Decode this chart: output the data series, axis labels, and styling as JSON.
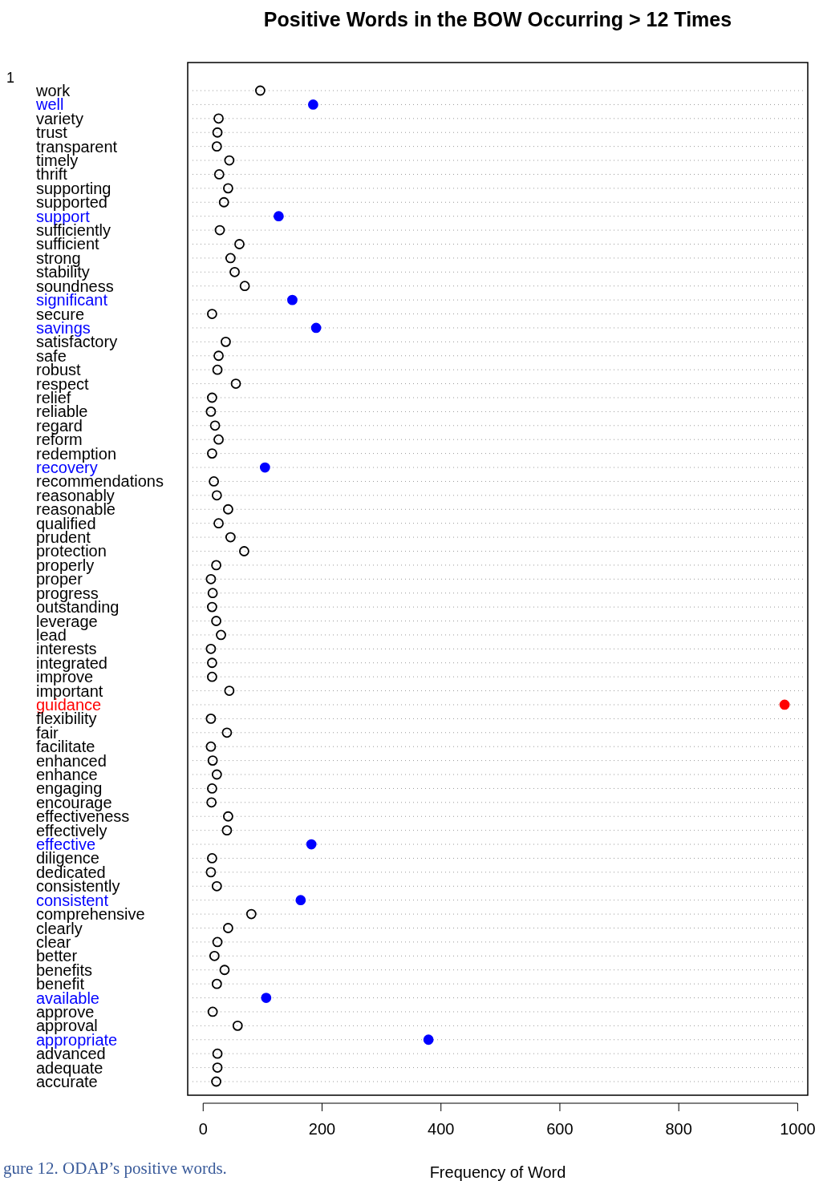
{
  "chart_data": {
    "type": "scatter",
    "title": "Positive Words in the BOW Occurring > 12 Times",
    "xlabel": "Frequency of Word",
    "orientation": "horizontal",
    "categories": [
      "work",
      "well",
      "variety",
      "trust",
      "transparent",
      "timely",
      "thrift",
      "supporting",
      "supported",
      "support",
      "sufficiently",
      "sufficient",
      "strong",
      "stability",
      "soundness",
      "significant",
      "secure",
      "savings",
      "satisfactory",
      "safe",
      "robust",
      "respect",
      "relief",
      "reliable",
      "regard",
      "reform",
      "redemption",
      "recovery",
      "recommendations",
      "reasonably",
      "reasonable",
      "qualified",
      "prudent",
      "protection",
      "properly",
      "proper",
      "progress",
      "outstanding",
      "leverage",
      "lead",
      "interests",
      "integrated",
      "improve",
      "important",
      "guidance",
      "flexibility",
      "fair",
      "facilitate",
      "enhanced",
      "enhance",
      "engaging",
      "encourage",
      "effectiveness",
      "effectively",
      "effective",
      "diligence",
      "dedicated",
      "consistently",
      "consistent",
      "comprehensive",
      "clearly",
      "clear",
      "better",
      "benefits",
      "benefit",
      "available",
      "approve",
      "approval",
      "appropriate",
      "advanced",
      "adequate",
      "accurate"
    ],
    "values": [
      96,
      185,
      26,
      24,
      23,
      44,
      27,
      42,
      35,
      127,
      28,
      61,
      46,
      53,
      70,
      150,
      15,
      190,
      38,
      26,
      24,
      55,
      15,
      13,
      20,
      26,
      15,
      104,
      18,
      23,
      42,
      26,
      46,
      69,
      22,
      13,
      16,
      15,
      22,
      30,
      13,
      15,
      15,
      44,
      978,
      13,
      40,
      13,
      16,
      23,
      15,
      14,
      42,
      40,
      182,
      15,
      13,
      23,
      164,
      81,
      42,
      24,
      19,
      36,
      23,
      106,
      16,
      58,
      379,
      24,
      24,
      22
    ],
    "colors": [
      "#000000",
      "#0000ff",
      "#000000",
      "#000000",
      "#000000",
      "#000000",
      "#000000",
      "#000000",
      "#000000",
      "#0000ff",
      "#000000",
      "#000000",
      "#000000",
      "#000000",
      "#000000",
      "#0000ff",
      "#000000",
      "#0000ff",
      "#000000",
      "#000000",
      "#000000",
      "#000000",
      "#000000",
      "#000000",
      "#000000",
      "#000000",
      "#000000",
      "#0000ff",
      "#000000",
      "#000000",
      "#000000",
      "#000000",
      "#000000",
      "#000000",
      "#000000",
      "#000000",
      "#000000",
      "#000000",
      "#000000",
      "#000000",
      "#000000",
      "#000000",
      "#000000",
      "#000000",
      "#ff0000",
      "#000000",
      "#000000",
      "#000000",
      "#000000",
      "#000000",
      "#000000",
      "#000000",
      "#000000",
      "#000000",
      "#0000ff",
      "#000000",
      "#000000",
      "#000000",
      "#0000ff",
      "#000000",
      "#000000",
      "#000000",
      "#000000",
      "#000000",
      "#000000",
      "#0000ff",
      "#000000",
      "#000000",
      "#0000ff",
      "#000000",
      "#000000",
      "#000000"
    ],
    "xlim": [
      -26,
      1017
    ],
    "xticks": [
      0,
      200,
      400,
      600,
      800,
      1000
    ],
    "grid": "y",
    "marker": "circle",
    "annotations": [
      "1",
      "gure 12.  ODAP’s positive words."
    ]
  }
}
